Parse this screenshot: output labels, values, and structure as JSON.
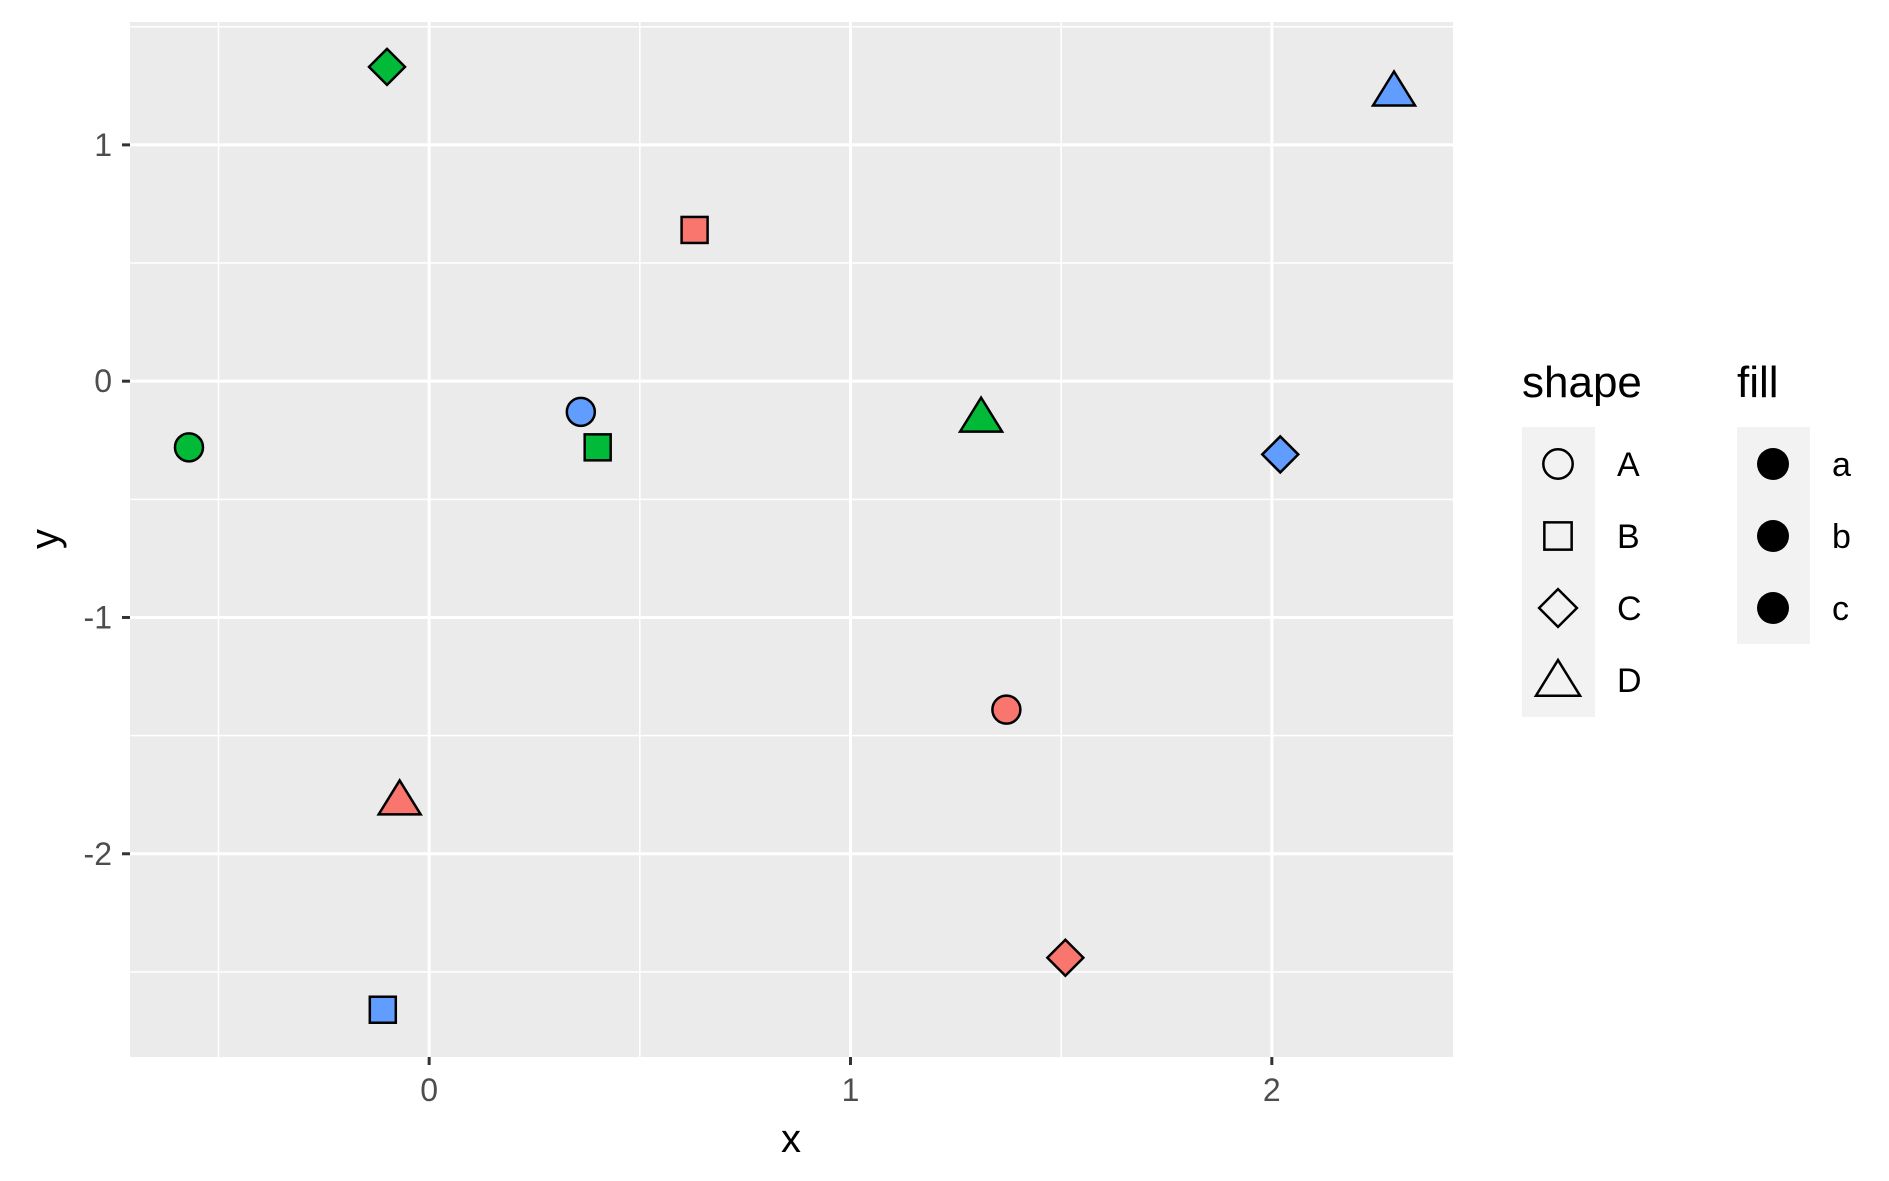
{
  "chart_data": {
    "type": "scatter",
    "title": "",
    "xlabel": "x",
    "ylabel": "y",
    "xlim": [
      -0.71,
      2.43
    ],
    "ylim": [
      -2.86,
      1.52
    ],
    "xticks": [
      0,
      1,
      2
    ],
    "xtick_labels": [
      "0",
      "1",
      "2"
    ],
    "yticks": [
      -2,
      -1,
      0,
      1
    ],
    "ytick_labels": [
      "-2",
      "-1",
      "0",
      "1"
    ],
    "grid": true,
    "panel_background": "#ebebeb",
    "points": [
      {
        "x": -0.57,
        "y": -0.28,
        "shape": "A",
        "fill": "b"
      },
      {
        "x": 0.36,
        "y": -0.13,
        "shape": "A",
        "fill": "c"
      },
      {
        "x": 1.37,
        "y": -1.39,
        "shape": "A",
        "fill": "a"
      },
      {
        "x": 0.4,
        "y": -0.28,
        "shape": "B",
        "fill": "b"
      },
      {
        "x": 0.63,
        "y": 0.64,
        "shape": "B",
        "fill": "a"
      },
      {
        "x": -0.11,
        "y": -2.66,
        "shape": "B",
        "fill": "c"
      },
      {
        "x": -0.1,
        "y": 1.33,
        "shape": "C",
        "fill": "b"
      },
      {
        "x": 2.02,
        "y": -0.31,
        "shape": "C",
        "fill": "c"
      },
      {
        "x": 1.51,
        "y": -2.44,
        "shape": "C",
        "fill": "a"
      },
      {
        "x": 2.29,
        "y": 1.23,
        "shape": "D",
        "fill": "c"
      },
      {
        "x": 1.31,
        "y": -0.15,
        "shape": "D",
        "fill": "b"
      },
      {
        "x": -0.07,
        "y": -1.77,
        "shape": "D",
        "fill": "a"
      }
    ],
    "legends": [
      {
        "title": "shape",
        "placement": "right",
        "entries": [
          {
            "label": "A",
            "icon": "circle-outline"
          },
          {
            "label": "B",
            "icon": "square-outline"
          },
          {
            "label": "C",
            "icon": "diamond-outline"
          },
          {
            "label": "D",
            "icon": "triangle-outline"
          }
        ]
      },
      {
        "title": "fill",
        "placement": "right",
        "entries": [
          {
            "label": "a",
            "icon": "filled-circle"
          },
          {
            "label": "b",
            "icon": "filled-circle"
          },
          {
            "label": "c",
            "icon": "filled-circle"
          }
        ]
      }
    ],
    "fill_colors": {
      "a": "#f8766d",
      "b": "#00ba38",
      "c": "#619cff"
    }
  }
}
